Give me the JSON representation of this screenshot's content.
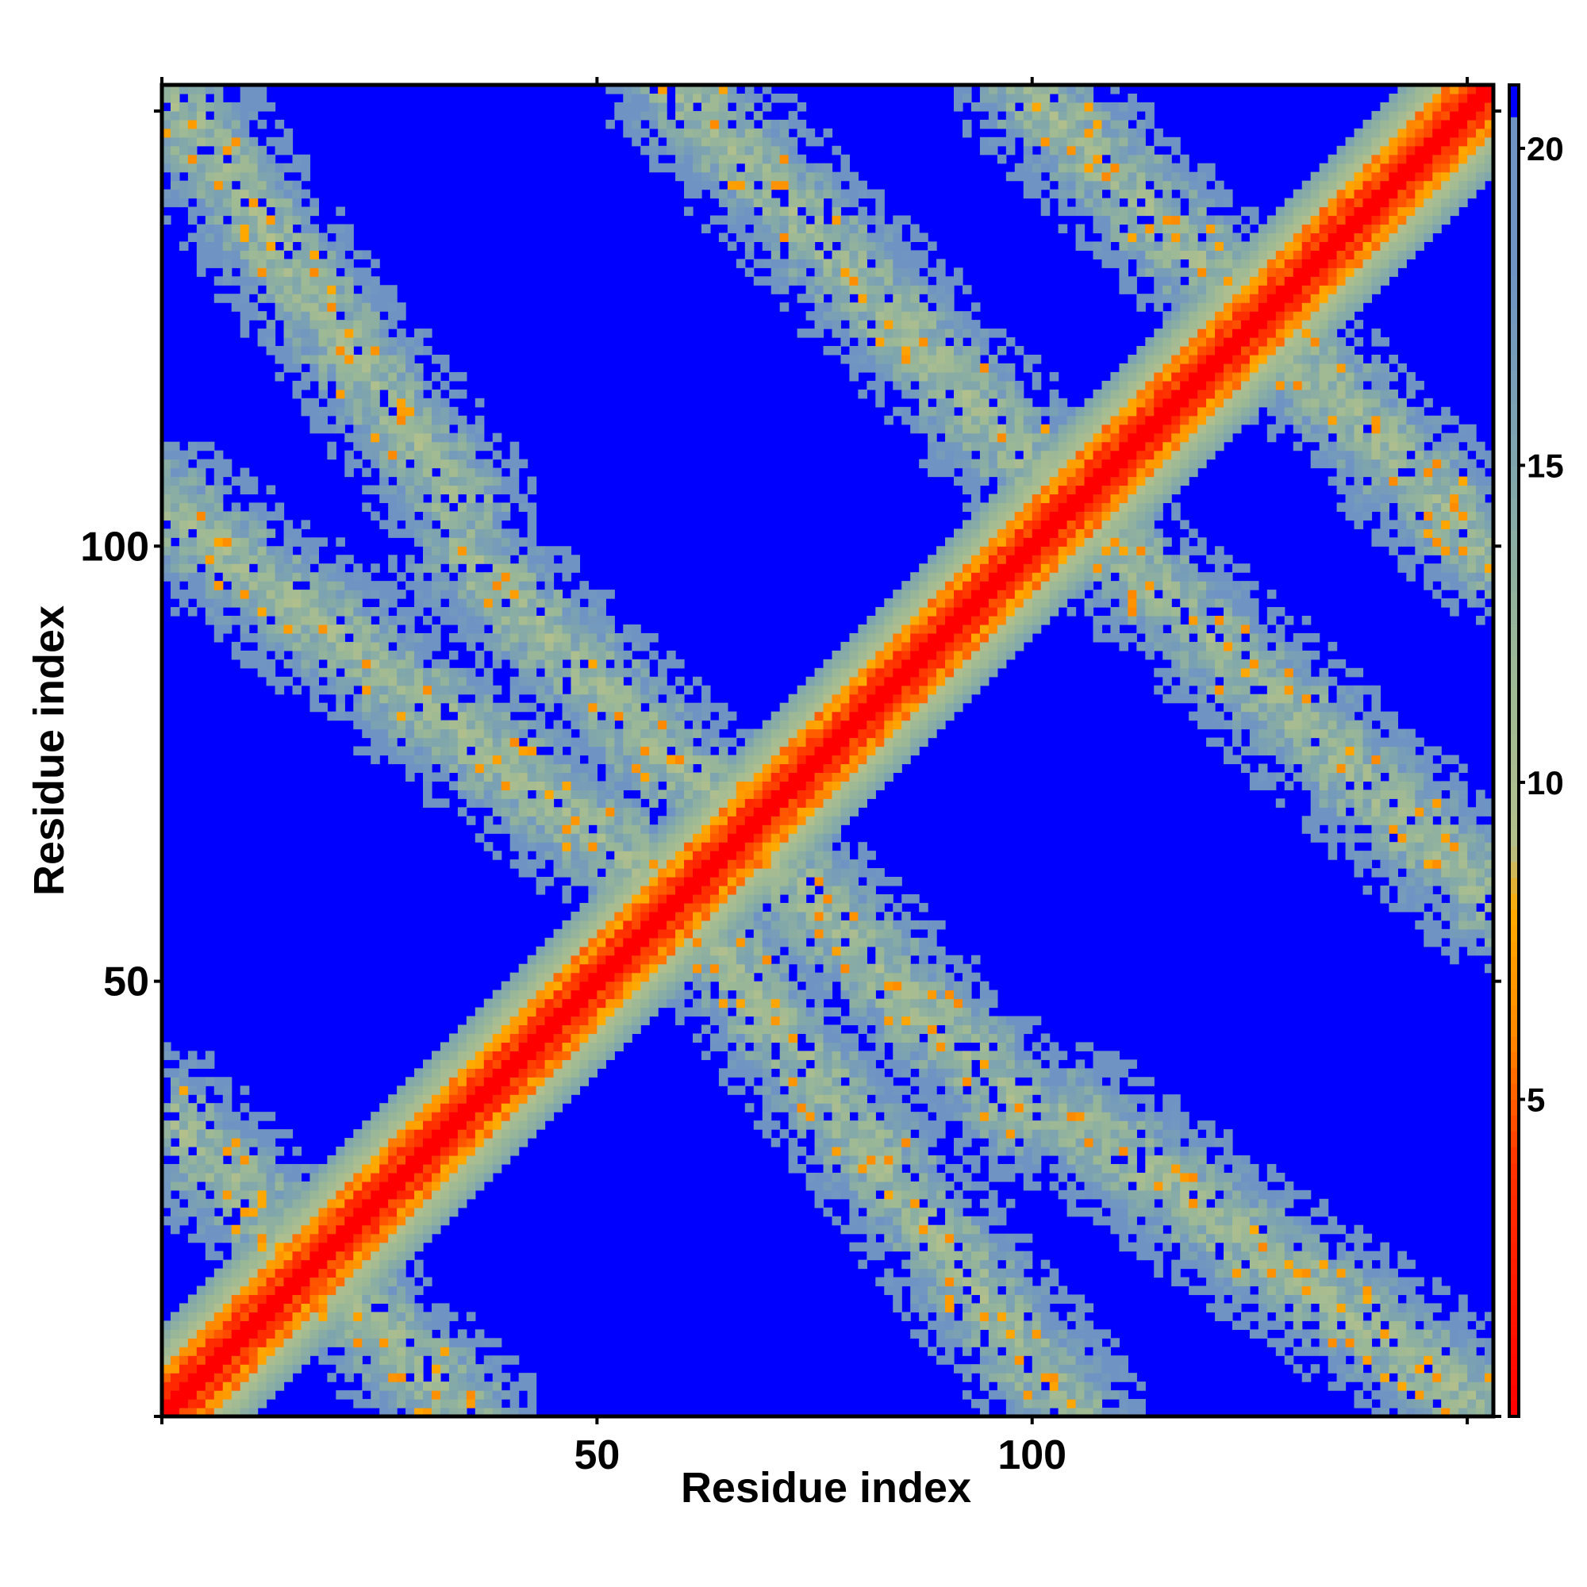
{
  "chart_data": {
    "type": "heatmap",
    "title": "",
    "xlabel": "Residue index",
    "ylabel": "Residue index",
    "n_residues": 153,
    "xlim": [
      1,
      153
    ],
    "ylim": [
      1,
      153
    ],
    "x_ticks": [
      50,
      100
    ],
    "y_ticks": [
      50,
      100
    ],
    "x_tick_labels": [
      "50",
      "100"
    ],
    "y_tick_labels": [
      "50",
      "100"
    ],
    "colorbar": {
      "ticks": [
        5,
        10,
        15,
        20
      ],
      "tick_labels": [
        "5",
        "10",
        "15",
        "20"
      ],
      "range": [
        0,
        21
      ],
      "stops": [
        {
          "value": 0,
          "color": "#ff0000"
        },
        {
          "value": 4,
          "color": "#ff3300"
        },
        {
          "value": 6,
          "color": "#ff8800"
        },
        {
          "value": 8,
          "color": "#ffaa00"
        },
        {
          "value": 9,
          "color": "#b4c08c"
        },
        {
          "value": 12,
          "color": "#9bb896"
        },
        {
          "value": 15,
          "color": "#7fa6ad"
        },
        {
          "value": 18,
          "color": "#6f94c4"
        },
        {
          "value": 21,
          "color": "#0000ff"
        }
      ]
    },
    "description_of_values": "Pairwise residue distance map; diagonal near 0 (red), cross-diagonal contact band and helix blocks 9-16 (olive/grey-blue), far pairs saturated at 21 (blue).",
    "contact_features": [
      {
        "kind": "diagonal",
        "residues": [
          1,
          153
        ]
      },
      {
        "kind": "antiparallel",
        "i_range": [
          1,
          35
        ],
        "j_range": [
          35,
          1
        ]
      },
      {
        "kind": "antiparallel",
        "i_range": [
          35,
          100
        ],
        "j_range": [
          100,
          35
        ]
      },
      {
        "kind": "antiparallel",
        "i_range": [
          100,
          153
        ],
        "j_range": [
          153,
          100
        ]
      },
      {
        "kind": "antiparallel",
        "i_range": [
          1,
          35
        ],
        "j_range": [
          153,
          105
        ]
      },
      {
        "kind": "antiparallel",
        "i_range": [
          60,
          105
        ],
        "j_range": [
          153,
          105
        ]
      },
      {
        "kind": "antiparallel",
        "i_range": [
          1,
          60
        ],
        "j_range": [
          105,
          60
        ]
      }
    ],
    "colors": {
      "far": "#0000ff",
      "near": "#ff0000",
      "mid": "#9bb896",
      "frame": "#000000"
    }
  }
}
